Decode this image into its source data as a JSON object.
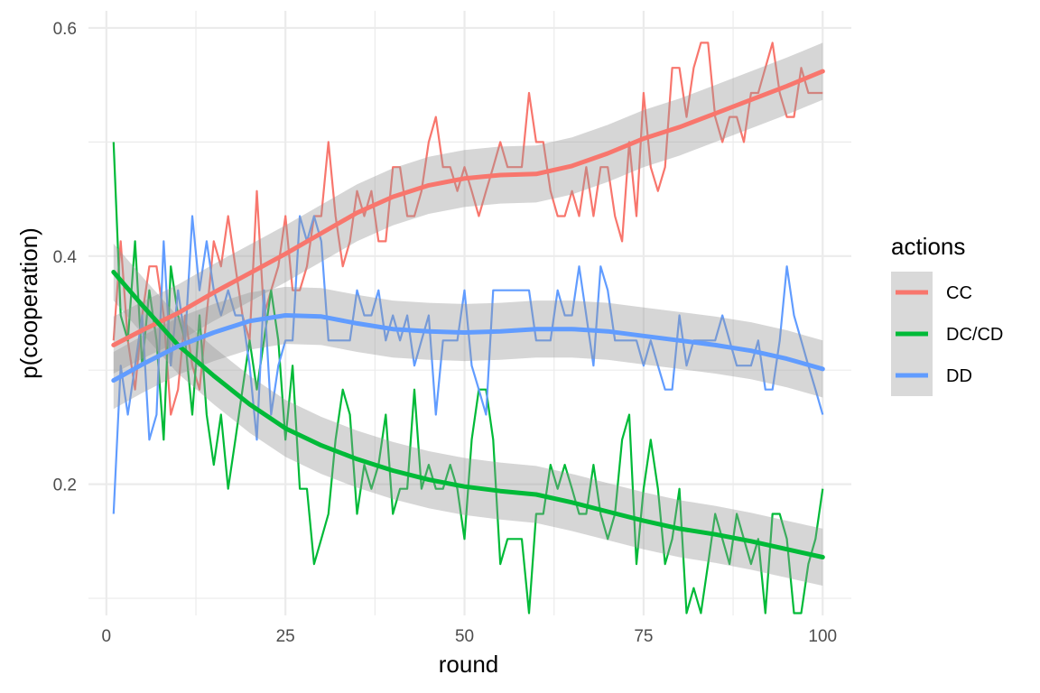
{
  "chart_data": {
    "type": "line",
    "title": "",
    "xlabel": "round",
    "ylabel": "p(cooperation)",
    "xlim": [
      -2.5,
      104
    ],
    "ylim": [
      0.085,
      0.615
    ],
    "x_ticks": [
      0,
      25,
      50,
      75,
      100
    ],
    "x_tick_labels": [
      "0",
      "25",
      "50",
      "75",
      "100"
    ],
    "y_ticks": [
      0.2,
      0.4,
      0.6
    ],
    "y_tick_labels": [
      "0.2",
      "0.4",
      "0.6"
    ],
    "grid": true,
    "legend": {
      "title": "actions",
      "position": "right"
    },
    "series": [
      {
        "name": "CC",
        "color": "#F8766D",
        "x": [
          1,
          2,
          3,
          4,
          5,
          6,
          7,
          8,
          9,
          10,
          11,
          12,
          13,
          14,
          15,
          16,
          17,
          18,
          19,
          20,
          21,
          22,
          23,
          24,
          25,
          26,
          27,
          28,
          29,
          30,
          31,
          32,
          33,
          34,
          35,
          36,
          37,
          38,
          39,
          40,
          41,
          42,
          43,
          44,
          45,
          46,
          47,
          48,
          49,
          50,
          51,
          52,
          53,
          54,
          55,
          56,
          57,
          58,
          59,
          60,
          61,
          62,
          63,
          64,
          65,
          66,
          67,
          68,
          69,
          70,
          71,
          72,
          73,
          74,
          75,
          76,
          77,
          78,
          79,
          80,
          81,
          82,
          83,
          84,
          85,
          86,
          87,
          88,
          89,
          90,
          91,
          92,
          93,
          94,
          95,
          96,
          97,
          98,
          99,
          100
        ],
        "values": [
          0.326,
          0.413,
          0.326,
          0.283,
          0.348,
          0.391,
          0.391,
          0.348,
          0.261,
          0.283,
          0.348,
          0.304,
          0.283,
          0.348,
          0.413,
          0.391,
          0.435,
          0.391,
          0.348,
          0.326,
          0.457,
          0.348,
          0.37,
          0.391,
          0.435,
          0.37,
          0.37,
          0.391,
          0.435,
          0.435,
          0.5,
          0.435,
          0.391,
          0.413,
          0.457,
          0.435,
          0.457,
          0.413,
          0.413,
          0.478,
          0.478,
          0.435,
          0.435,
          0.457,
          0.5,
          0.522,
          0.478,
          0.478,
          0.457,
          0.478,
          0.457,
          0.435,
          0.457,
          0.478,
          0.5,
          0.478,
          0.478,
          0.478,
          0.543,
          0.5,
          0.5,
          0.457,
          0.435,
          0.435,
          0.457,
          0.435,
          0.478,
          0.435,
          0.478,
          0.478,
          0.435,
          0.413,
          0.5,
          0.435,
          0.543,
          0.478,
          0.457,
          0.478,
          0.565,
          0.565,
          0.522,
          0.565,
          0.587,
          0.587,
          0.522,
          0.5,
          0.522,
          0.522,
          0.5,
          0.543,
          0.543,
          0.565,
          0.587,
          0.543,
          0.522,
          0.522,
          0.565,
          0.543,
          0.543,
          0.543
        ]
      },
      {
        "name": "DC/CD",
        "color": "#00BA38",
        "x": [
          1,
          2,
          3,
          4,
          5,
          6,
          7,
          8,
          9,
          10,
          11,
          12,
          13,
          14,
          15,
          16,
          17,
          18,
          19,
          20,
          21,
          22,
          23,
          24,
          25,
          26,
          27,
          28,
          29,
          30,
          31,
          32,
          33,
          34,
          35,
          36,
          37,
          38,
          39,
          40,
          41,
          42,
          43,
          44,
          45,
          46,
          47,
          48,
          49,
          50,
          51,
          52,
          53,
          54,
          55,
          56,
          57,
          58,
          59,
          60,
          61,
          62,
          63,
          64,
          65,
          66,
          67,
          68,
          69,
          70,
          71,
          72,
          73,
          74,
          75,
          76,
          77,
          78,
          79,
          80,
          81,
          82,
          83,
          84,
          85,
          86,
          87,
          88,
          89,
          90,
          91,
          92,
          93,
          94,
          95,
          96,
          97,
          98,
          99,
          100
        ],
        "values": [
          0.5,
          0.348,
          0.326,
          0.413,
          0.304,
          0.37,
          0.326,
          0.239,
          0.391,
          0.348,
          0.326,
          0.261,
          0.348,
          0.261,
          0.217,
          0.261,
          0.196,
          0.239,
          0.283,
          0.326,
          0.283,
          0.326,
          0.37,
          0.326,
          0.239,
          0.304,
          0.196,
          0.196,
          0.13,
          0.152,
          0.174,
          0.239,
          0.283,
          0.261,
          0.174,
          0.217,
          0.196,
          0.217,
          0.261,
          0.174,
          0.196,
          0.196,
          0.283,
          0.196,
          0.217,
          0.196,
          0.196,
          0.217,
          0.196,
          0.152,
          0.239,
          0.283,
          0.283,
          0.239,
          0.13,
          0.152,
          0.152,
          0.152,
          0.087,
          0.174,
          0.174,
          0.217,
          0.196,
          0.217,
          0.196,
          0.174,
          0.174,
          0.217,
          0.174,
          0.152,
          0.174,
          0.239,
          0.261,
          0.13,
          0.196,
          0.239,
          0.196,
          0.13,
          0.152,
          0.196,
          0.087,
          0.109,
          0.087,
          0.13,
          0.174,
          0.152,
          0.13,
          0.174,
          0.152,
          0.13,
          0.152,
          0.087,
          0.174,
          0.174,
          0.152,
          0.087,
          0.087,
          0.13,
          0.152,
          0.196
        ]
      },
      {
        "name": "DD",
        "color": "#619CFF",
        "x": [
          1,
          2,
          3,
          4,
          5,
          6,
          7,
          8,
          9,
          10,
          11,
          12,
          13,
          14,
          15,
          16,
          17,
          18,
          19,
          20,
          21,
          22,
          23,
          24,
          25,
          26,
          27,
          28,
          29,
          30,
          31,
          32,
          33,
          34,
          35,
          36,
          37,
          38,
          39,
          40,
          41,
          42,
          43,
          44,
          45,
          46,
          47,
          48,
          49,
          50,
          51,
          52,
          53,
          54,
          55,
          56,
          57,
          58,
          59,
          60,
          61,
          62,
          63,
          64,
          65,
          66,
          67,
          68,
          69,
          70,
          71,
          72,
          73,
          74,
          75,
          76,
          77,
          78,
          79,
          80,
          81,
          82,
          83,
          84,
          85,
          86,
          87,
          88,
          89,
          90,
          91,
          92,
          93,
          94,
          95,
          96,
          97,
          98,
          99,
          100
        ],
        "values": [
          0.174,
          0.304,
          0.261,
          0.304,
          0.348,
          0.239,
          0.261,
          0.413,
          0.304,
          0.37,
          0.326,
          0.435,
          0.37,
          0.413,
          0.37,
          0.348,
          0.37,
          0.348,
          0.348,
          0.304,
          0.239,
          0.37,
          0.261,
          0.304,
          0.326,
          0.326,
          0.435,
          0.413,
          0.435,
          0.413,
          0.326,
          0.326,
          0.326,
          0.326,
          0.37,
          0.348,
          0.348,
          0.37,
          0.326,
          0.348,
          0.326,
          0.348,
          0.304,
          0.326,
          0.348,
          0.261,
          0.326,
          0.326,
          0.326,
          0.37,
          0.304,
          0.283,
          0.261,
          0.37,
          0.37,
          0.37,
          0.37,
          0.37,
          0.37,
          0.326,
          0.326,
          0.326,
          0.37,
          0.348,
          0.348,
          0.391,
          0.348,
          0.304,
          0.391,
          0.37,
          0.326,
          0.326,
          0.326,
          0.326,
          0.304,
          0.326,
          0.304,
          0.283,
          0.283,
          0.348,
          0.304,
          0.326,
          0.326,
          0.326,
          0.326,
          0.348,
          0.326,
          0.304,
          0.304,
          0.304,
          0.326,
          0.283,
          0.283,
          0.326,
          0.391,
          0.348,
          0.326,
          0.304,
          0.283,
          0.261
        ]
      }
    ],
    "smooth": [
      {
        "name": "CC",
        "color": "#F8766D",
        "x": [
          1,
          5,
          10,
          15,
          20,
          25,
          30,
          35,
          40,
          45,
          50,
          55,
          60,
          65,
          70,
          75,
          80,
          85,
          90,
          95,
          100
        ],
        "values": [
          0.322,
          0.335,
          0.35,
          0.368,
          0.385,
          0.402,
          0.42,
          0.438,
          0.452,
          0.462,
          0.468,
          0.471,
          0.472,
          0.479,
          0.49,
          0.503,
          0.513,
          0.525,
          0.537,
          0.549,
          0.562
        ],
        "band": 0.025
      },
      {
        "name": "DC/CD",
        "color": "#00BA38",
        "x": [
          1,
          5,
          10,
          15,
          20,
          25,
          30,
          35,
          40,
          45,
          50,
          55,
          60,
          65,
          70,
          75,
          80,
          85,
          90,
          95,
          100
        ],
        "values": [
          0.386,
          0.357,
          0.322,
          0.295,
          0.27,
          0.249,
          0.234,
          0.222,
          0.212,
          0.204,
          0.198,
          0.194,
          0.191,
          0.184,
          0.176,
          0.168,
          0.161,
          0.156,
          0.15,
          0.143,
          0.136
        ],
        "band": 0.025
      },
      {
        "name": "DD",
        "color": "#619CFF",
        "x": [
          1,
          5,
          10,
          15,
          20,
          25,
          30,
          35,
          40,
          45,
          50,
          55,
          60,
          65,
          70,
          75,
          80,
          85,
          90,
          95,
          100
        ],
        "values": [
          0.291,
          0.305,
          0.321,
          0.333,
          0.343,
          0.348,
          0.347,
          0.341,
          0.336,
          0.334,
          0.333,
          0.334,
          0.336,
          0.336,
          0.334,
          0.33,
          0.326,
          0.322,
          0.317,
          0.31,
          0.301
        ],
        "band": 0.025
      }
    ]
  }
}
